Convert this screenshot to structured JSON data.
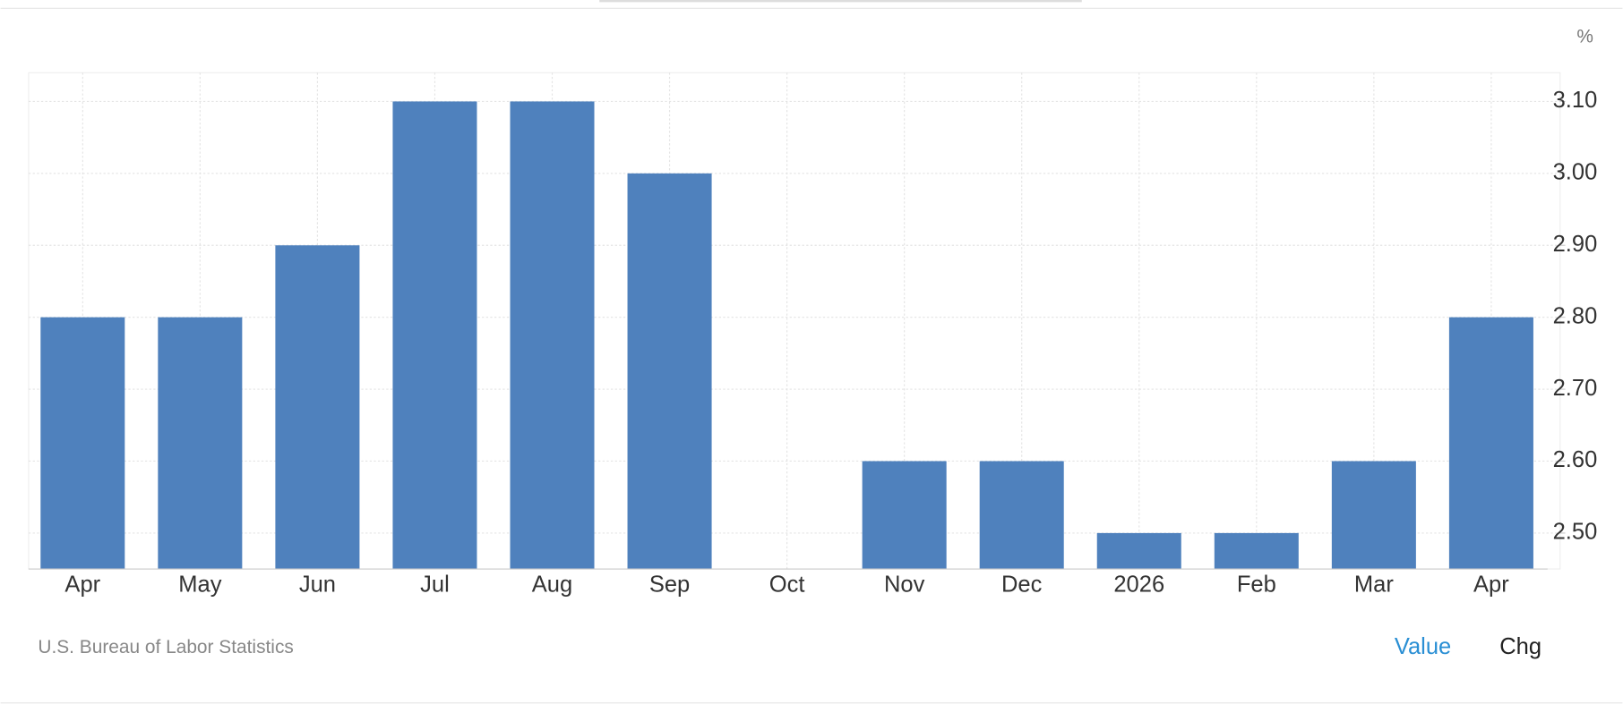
{
  "chart_data": {
    "type": "bar",
    "categories": [
      "Apr",
      "May",
      "Jun",
      "Jul",
      "Aug",
      "Sep",
      "Oct",
      "Nov",
      "Dec",
      "2026",
      "Feb",
      "Mar",
      "Apr"
    ],
    "values": [
      2.8,
      2.8,
      2.9,
      3.1,
      3.1,
      3.0,
      null,
      2.6,
      2.6,
      2.5,
      2.5,
      2.6,
      2.8
    ],
    "color": "#4f81bd",
    "ylim": [
      2.45,
      3.14
    ],
    "yticks": [
      {
        "value": 2.5,
        "label": "2.50"
      },
      {
        "value": 2.6,
        "label": "2.60"
      },
      {
        "value": 2.7,
        "label": "2.70"
      },
      {
        "value": 2.8,
        "label": "2.80"
      },
      {
        "value": 2.9,
        "label": "2.90"
      },
      {
        "value": 3.0,
        "label": "3.00"
      },
      {
        "value": 3.1,
        "label": "3.10"
      }
    ],
    "y_unit": "%",
    "grid": true,
    "source": "U.S. Bureau of Labor Statistics"
  },
  "controls": [
    "Value",
    "Chg"
  ]
}
